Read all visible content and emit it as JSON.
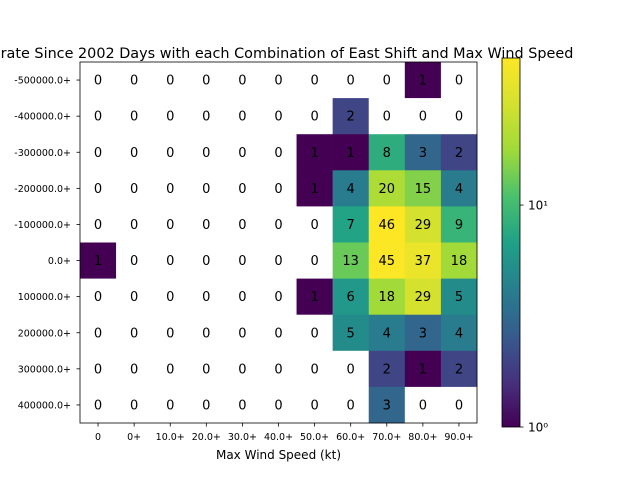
{
  "chart_data": {
    "type": "heatmap",
    "title": "rate Since 2002 Days with each Combination of East Shift and Max Wind Speed",
    "xlabel": "Max Wind Speed (kt)",
    "ylabel": "",
    "x_categories": [
      "0",
      "0+",
      "10.0+",
      "20.0+",
      "30.0+",
      "40.0+",
      "50.0+",
      "60.0+",
      "70.0+",
      "80.0+",
      "90.0+"
    ],
    "y_categories": [
      "-500000.0+",
      "-400000.0+",
      "-300000.0+",
      "-200000.0+",
      "-100000.0+",
      "0.0+",
      "100000.0+",
      "200000.0+",
      "300000.0+",
      "400000.0+"
    ],
    "values": [
      [
        0,
        0,
        0,
        0,
        0,
        0,
        0,
        0,
        0,
        1,
        0
      ],
      [
        0,
        0,
        0,
        0,
        0,
        0,
        0,
        2,
        0,
        0,
        0
      ],
      [
        0,
        0,
        0,
        0,
        0,
        0,
        1,
        1,
        8,
        3,
        2
      ],
      [
        0,
        0,
        0,
        0,
        0,
        0,
        1,
        4,
        20,
        15,
        4
      ],
      [
        0,
        0,
        0,
        0,
        0,
        0,
        0,
        7,
        46,
        29,
        9
      ],
      [
        1,
        0,
        0,
        0,
        0,
        0,
        0,
        13,
        45,
        37,
        18
      ],
      [
        0,
        0,
        0,
        0,
        0,
        0,
        1,
        6,
        18,
        29,
        5
      ],
      [
        0,
        0,
        0,
        0,
        0,
        0,
        0,
        5,
        4,
        3,
        4
      ],
      [
        0,
        0,
        0,
        0,
        0,
        0,
        0,
        0,
        2,
        1,
        2
      ],
      [
        0,
        0,
        0,
        0,
        0,
        0,
        0,
        0,
        3,
        0,
        0
      ]
    ],
    "colormap": "viridis",
    "color_scale": "log",
    "color_range": [
      1,
      46
    ],
    "colorbar": {
      "ticks": [
        {
          "value": 10,
          "label": "10¹"
        },
        {
          "value": 1,
          "label": "10⁰"
        }
      ]
    },
    "zero_cell_color": "#ffffff",
    "grid": false
  }
}
